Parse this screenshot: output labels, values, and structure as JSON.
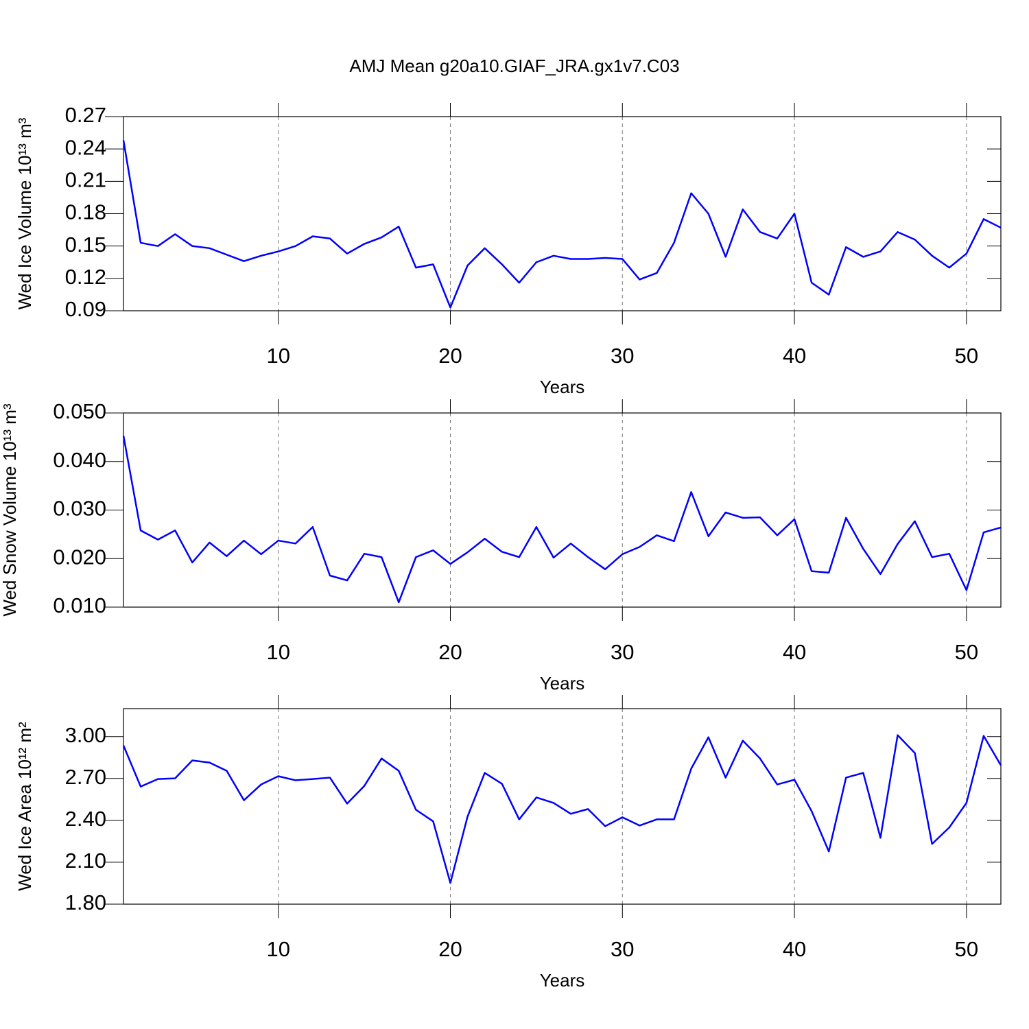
{
  "title": "AMJ Mean g20a10.GIAF_JRA.gx1v7.C03",
  "chart_data": [
    {
      "type": "line",
      "ylabel": "Wed Ice Volume 10¹³ m³",
      "xlabel": "Years",
      "color": "#0000ff",
      "grid": true,
      "x": [
        1,
        2,
        3,
        4,
        5,
        6,
        7,
        8,
        9,
        10,
        11,
        12,
        13,
        14,
        15,
        16,
        17,
        18,
        19,
        20,
        21,
        22,
        23,
        24,
        25,
        26,
        27,
        28,
        29,
        30,
        31,
        32,
        33,
        34,
        35,
        36,
        37,
        38,
        39,
        40,
        41,
        42,
        43,
        44,
        45,
        46,
        47,
        48,
        49,
        50,
        51,
        52
      ],
      "values": [
        0.248,
        0.153,
        0.15,
        0.161,
        0.15,
        0.148,
        0.142,
        0.136,
        0.141,
        0.145,
        0.15,
        0.159,
        0.157,
        0.143,
        0.152,
        0.158,
        0.168,
        0.13,
        0.133,
        0.093,
        0.132,
        0.148,
        0.133,
        0.116,
        0.135,
        0.141,
        0.138,
        0.138,
        0.139,
        0.138,
        0.119,
        0.125,
        0.153,
        0.199,
        0.18,
        0.14,
        0.184,
        0.163,
        0.157,
        0.18,
        0.116,
        0.105,
        0.149,
        0.14,
        0.145,
        0.163,
        0.156,
        0.141,
        0.13,
        0.143,
        0.175,
        0.167
      ],
      "xlim": [
        1,
        52
      ],
      "xticks": [
        10,
        20,
        30,
        40,
        50
      ],
      "ylim": [
        0.09,
        0.27
      ],
      "yticks": [
        0.09,
        0.12,
        0.15,
        0.18,
        0.21,
        0.24,
        0.27
      ]
    },
    {
      "type": "line",
      "ylabel": "Wed Snow Volume 10¹³ m³",
      "xlabel": "Years",
      "color": "#0000ff",
      "grid": true,
      "x": [
        1,
        2,
        3,
        4,
        5,
        6,
        7,
        8,
        9,
        10,
        11,
        12,
        13,
        14,
        15,
        16,
        17,
        18,
        19,
        20,
        21,
        22,
        23,
        24,
        25,
        26,
        27,
        28,
        29,
        30,
        31,
        32,
        33,
        34,
        35,
        36,
        37,
        38,
        39,
        40,
        41,
        42,
        43,
        44,
        45,
        46,
        47,
        48,
        49,
        50,
        51,
        52
      ],
      "values": [
        0.0453,
        0.0258,
        0.0239,
        0.0258,
        0.0192,
        0.0233,
        0.0205,
        0.0237,
        0.0209,
        0.0237,
        0.0231,
        0.0265,
        0.0165,
        0.0155,
        0.021,
        0.0203,
        0.011,
        0.0203,
        0.0217,
        0.0189,
        0.0213,
        0.0241,
        0.0214,
        0.0203,
        0.0265,
        0.0202,
        0.0231,
        0.0203,
        0.0178,
        0.0209,
        0.0224,
        0.0248,
        0.0236,
        0.0337,
        0.0246,
        0.0295,
        0.0284,
        0.0285,
        0.0248,
        0.0281,
        0.0174,
        0.0171,
        0.0284,
        0.022,
        0.0168,
        0.023,
        0.0277,
        0.0203,
        0.021,
        0.0135,
        0.0254,
        0.0264
      ],
      "xlim": [
        1,
        52
      ],
      "xticks": [
        10,
        20,
        30,
        40,
        50
      ],
      "ylim": [
        0.01,
        0.05
      ],
      "yticks": [
        {
          "value": 0.01,
          "label": "0.010"
        },
        {
          "value": 0.02,
          "label": "0.020"
        },
        {
          "value": 0.03,
          "label": "0.030"
        },
        {
          "value": 0.04,
          "label": "0.040"
        },
        {
          "value": 0.05,
          "label": "0.050"
        }
      ]
    },
    {
      "type": "line",
      "ylabel": "Wed Ice Area 10¹² m²",
      "xlabel": "Years",
      "color": "#0000ff",
      "grid": true,
      "x": [
        1,
        2,
        3,
        4,
        5,
        6,
        7,
        8,
        9,
        10,
        11,
        12,
        13,
        14,
        15,
        16,
        17,
        18,
        19,
        20,
        21,
        22,
        23,
        24,
        25,
        26,
        27,
        28,
        29,
        30,
        31,
        32,
        33,
        34,
        35,
        36,
        37,
        38,
        39,
        40,
        41,
        42,
        43,
        44,
        45,
        46,
        47,
        48,
        49,
        50,
        51,
        52
      ],
      "values": [
        2.936,
        2.642,
        2.696,
        2.701,
        2.829,
        2.814,
        2.755,
        2.544,
        2.657,
        2.716,
        2.687,
        2.696,
        2.706,
        2.52,
        2.647,
        2.843,
        2.755,
        2.476,
        2.393,
        1.952,
        2.427,
        2.74,
        2.662,
        2.407,
        2.564,
        2.525,
        2.447,
        2.481,
        2.358,
        2.422,
        2.363,
        2.407,
        2.407,
        2.77,
        2.995,
        2.706,
        2.971,
        2.843,
        2.657,
        2.691,
        2.466,
        2.177,
        2.706,
        2.74,
        2.275,
        3.01,
        2.882,
        2.231,
        2.349,
        2.525,
        3.005,
        2.794
      ],
      "xlim": [
        1,
        52
      ],
      "xticks": [
        10,
        20,
        30,
        40,
        50
      ],
      "ylim": [
        1.8,
        3.2
      ],
      "yticks": [
        {
          "value": 1.8,
          "label": "1.80"
        },
        {
          "value": 2.1,
          "label": "2.10"
        },
        {
          "value": 2.4,
          "label": "2.40"
        },
        {
          "value": 2.7,
          "label": "2.70"
        },
        {
          "value": 3.0,
          "label": "3.00"
        }
      ]
    }
  ]
}
